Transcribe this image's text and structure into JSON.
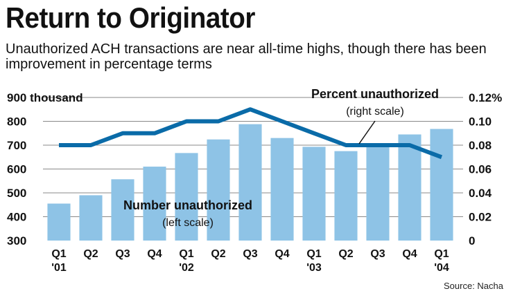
{
  "header": {
    "title": "Return to Originator",
    "subtitle": "Unauthorized ACH transactions are near all-time highs, though there has been improvement in percentage terms"
  },
  "source": "Source: Nacha",
  "colors": {
    "bar": "#8ec3e6",
    "line": "#0a6ba8",
    "grid": "#888888"
  },
  "chart_data": {
    "type": "bar",
    "categories": [
      "Q1 '01",
      "Q2",
      "Q3",
      "Q4",
      "Q1 '02",
      "Q2",
      "Q3",
      "Q4",
      "Q1 '03",
      "Q2",
      "Q3",
      "Q4",
      "Q1 '04"
    ],
    "x_tick_labels": [
      [
        "Q1",
        "'01"
      ],
      [
        "Q2"
      ],
      [
        "Q3"
      ],
      [
        "Q4"
      ],
      [
        "Q1",
        "'02"
      ],
      [
        "Q2"
      ],
      [
        "Q3"
      ],
      [
        "Q4"
      ],
      [
        "Q1",
        "'03"
      ],
      [
        "Q2"
      ],
      [
        "Q3"
      ],
      [
        "Q4"
      ],
      [
        "Q1",
        "'04"
      ]
    ],
    "series": [
      {
        "name": "Number unauthorized",
        "axis": "left",
        "type": "bar",
        "values": [
          455,
          490,
          557,
          610,
          667,
          724,
          788,
          730,
          693,
          675,
          702,
          745,
          768
        ]
      },
      {
        "name": "Percent unauthorized",
        "axis": "right",
        "type": "line",
        "values": [
          0.08,
          0.08,
          0.09,
          0.09,
          0.1,
          0.1,
          0.11,
          0.1,
          0.09,
          0.08,
          0.08,
          0.08,
          0.07
        ]
      }
    ],
    "left_axis": {
      "ylim": [
        300,
        900
      ],
      "ticks": [
        300,
        400,
        500,
        600,
        700,
        800,
        900
      ],
      "tick_labels": [
        "300",
        "400",
        "500",
        "600",
        "700",
        "800",
        "900 thousand"
      ]
    },
    "right_axis": {
      "ylim": [
        0,
        0.12
      ],
      "ticks": [
        0,
        0.02,
        0.04,
        0.06,
        0.08,
        0.1,
        0.12
      ],
      "tick_labels": [
        "0",
        "0.02",
        "0.04",
        "0.06",
        "0.08",
        "0.10",
        "0.12%"
      ]
    },
    "annotations": {
      "bars_label": "Number unauthorized",
      "bars_sub": "(left scale)",
      "line_label": "Percent unauthorized",
      "line_sub": "(right scale)"
    },
    "grid": true
  }
}
